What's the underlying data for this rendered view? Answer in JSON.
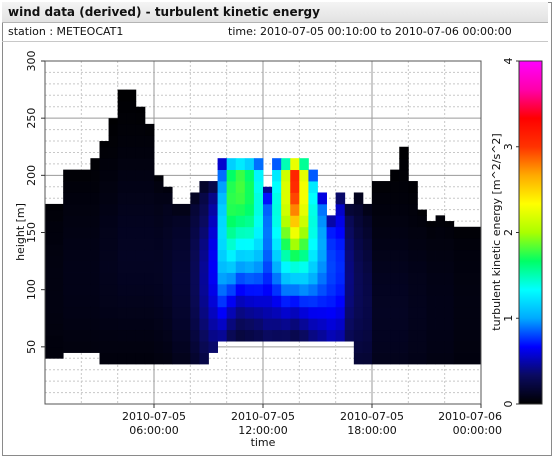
{
  "window": {
    "title": "wind data (derived) - turbulent kinetic energy",
    "station_label": "station : METEOCAT1",
    "time_label": "time: 2010-07-05 00:10:00 to 2010-07-06 00:00:00"
  },
  "chart_data": {
    "type": "heatmap",
    "title": "wind data (derived) - turbulent kinetic energy",
    "xlabel": "time",
    "ylabel": "height [m]",
    "colorbar_label": "turbulent kinetic energy [m^2/s^2]",
    "x_unit": "hours since 2010-07-05 00:00:00",
    "xlim": [
      0,
      24
    ],
    "ylim": [
      0,
      300
    ],
    "clim": [
      0,
      4
    ],
    "x_ticks": [
      {
        "x": 6,
        "date": "2010-07-05",
        "time": "06:00:00"
      },
      {
        "x": 12,
        "date": "2010-07-05",
        "time": "12:00:00"
      },
      {
        "x": 18,
        "date": "2010-07-05",
        "time": "18:00:00"
      },
      {
        "x": 24,
        "date": "2010-07-06",
        "time": "00:00:00"
      }
    ],
    "y_ticks": [
      50,
      100,
      150,
      200,
      250,
      300
    ],
    "c_ticks": [
      0,
      1,
      2,
      3,
      4
    ],
    "grid": true,
    "colormap": [
      "#000000",
      "#0a0a60",
      "#0000ff",
      "#00aaff",
      "#00ffff",
      "#00ff66",
      "#aaff00",
      "#ffff00",
      "#ffaa00",
      "#ff3300",
      "#ff0000",
      "#ff00aa",
      "#ff00ff"
    ],
    "cell_height": 10,
    "profiles": [
      {
        "t0": 0.0,
        "t1": 1.0,
        "y0": 40,
        "y1": 175,
        "peak": 0.06,
        "hpeak": 100
      },
      {
        "t0": 1.0,
        "t1": 2.5,
        "y0": 45,
        "y1": 205,
        "peak": 0.08,
        "hpeak": 110
      },
      {
        "t0": 2.5,
        "t1": 3.0,
        "y0": 45,
        "y1": 215,
        "peak": 0.08,
        "hpeak": 110
      },
      {
        "t0": 3.0,
        "t1": 3.5,
        "y0": 35,
        "y1": 230,
        "peak": 0.1,
        "hpeak": 120
      },
      {
        "t0": 3.5,
        "t1": 4.0,
        "y0": 35,
        "y1": 250,
        "peak": 0.1,
        "hpeak": 120
      },
      {
        "t0": 4.0,
        "t1": 4.5,
        "y0": 35,
        "y1": 275,
        "peak": 0.12,
        "hpeak": 130
      },
      {
        "t0": 4.5,
        "t1": 5.0,
        "y0": 35,
        "y1": 275,
        "peak": 0.12,
        "hpeak": 130
      },
      {
        "t0": 5.0,
        "t1": 5.5,
        "y0": 35,
        "y1": 260,
        "peak": 0.12,
        "hpeak": 130
      },
      {
        "t0": 5.5,
        "t1": 6.0,
        "y0": 35,
        "y1": 245,
        "peak": 0.12,
        "hpeak": 130
      },
      {
        "t0": 6.0,
        "t1": 6.5,
        "y0": 35,
        "y1": 200,
        "peak": 0.12,
        "hpeak": 120
      },
      {
        "t0": 6.5,
        "t1": 7.0,
        "y0": 35,
        "y1": 190,
        "peak": 0.14,
        "hpeak": 120
      },
      {
        "t0": 7.0,
        "t1": 8.0,
        "y0": 35,
        "y1": 175,
        "peak": 0.18,
        "hpeak": 110
      },
      {
        "t0": 8.0,
        "t1": 8.5,
        "y0": 35,
        "y1": 185,
        "peak": 0.3,
        "hpeak": 110
      },
      {
        "t0": 8.5,
        "t1": 9.0,
        "y0": 35,
        "y1": 195,
        "peak": 0.45,
        "hpeak": 110
      },
      {
        "t0": 9.0,
        "t1": 9.5,
        "y0": 45,
        "y1": 195,
        "peak": 0.65,
        "hpeak": 120
      },
      {
        "t0": 9.5,
        "t1": 10.0,
        "y0": 55,
        "y1": 215,
        "peak": 1.2,
        "hpeak": 150
      },
      {
        "t0": 10.0,
        "t1": 10.5,
        "y0": 55,
        "y1": 215,
        "peak": 1.75,
        "hpeak": 180
      },
      {
        "t0": 10.5,
        "t1": 11.0,
        "y0": 55,
        "y1": 215,
        "peak": 1.8,
        "hpeak": 190
      },
      {
        "t0": 11.0,
        "t1": 11.5,
        "y0": 55,
        "y1": 215,
        "peak": 1.7,
        "hpeak": 185
      },
      {
        "t0": 11.5,
        "t1": 12.0,
        "y0": 55,
        "y1": 215,
        "peak": 1.4,
        "hpeak": 175
      },
      {
        "t0": 12.0,
        "t1": 12.5,
        "y0": 55,
        "y1": 190,
        "peak": 0.9,
        "hpeak": 150
      },
      {
        "t0": 12.5,
        "t1": 13.0,
        "y0": 55,
        "y1": 215,
        "peak": 1.4,
        "hpeak": 170
      },
      {
        "t0": 13.0,
        "t1": 13.5,
        "y0": 55,
        "y1": 215,
        "peak": 2.2,
        "hpeak": 185
      },
      {
        "t0": 13.5,
        "t1": 14.0,
        "y0": 55,
        "y1": 215,
        "peak": 3.1,
        "hpeak": 200
      },
      {
        "t0": 14.0,
        "t1": 14.5,
        "y0": 55,
        "y1": 215,
        "peak": 2.3,
        "hpeak": 185
      },
      {
        "t0": 14.5,
        "t1": 15.0,
        "y0": 55,
        "y1": 205,
        "peak": 1.4,
        "hpeak": 160
      },
      {
        "t0": 15.0,
        "t1": 15.5,
        "y0": 55,
        "y1": 185,
        "peak": 1.0,
        "hpeak": 140
      },
      {
        "t0": 15.5,
        "t1": 16.0,
        "y0": 55,
        "y1": 165,
        "peak": 0.8,
        "hpeak": 120
      },
      {
        "t0": 16.0,
        "t1": 16.5,
        "y0": 55,
        "y1": 185,
        "peak": 0.75,
        "hpeak": 120
      },
      {
        "t0": 16.5,
        "t1": 17.0,
        "y0": 55,
        "y1": 175,
        "peak": 0.4,
        "hpeak": 110
      },
      {
        "t0": 17.0,
        "t1": 17.5,
        "y0": 35,
        "y1": 185,
        "peak": 0.3,
        "hpeak": 100
      },
      {
        "t0": 17.5,
        "t1": 18.0,
        "y0": 35,
        "y1": 175,
        "peak": 0.25,
        "hpeak": 90
      },
      {
        "t0": 18.0,
        "t1": 19.0,
        "y0": 35,
        "y1": 195,
        "peak": 0.12,
        "hpeak": 80
      },
      {
        "t0": 19.0,
        "t1": 19.5,
        "y0": 35,
        "y1": 205,
        "peak": 0.12,
        "hpeak": 80
      },
      {
        "t0": 19.5,
        "t1": 20.0,
        "y0": 35,
        "y1": 225,
        "peak": 0.12,
        "hpeak": 80
      },
      {
        "t0": 20.0,
        "t1": 20.5,
        "y0": 35,
        "y1": 195,
        "peak": 0.1,
        "hpeak": 80
      },
      {
        "t0": 20.5,
        "t1": 21.0,
        "y0": 35,
        "y1": 170,
        "peak": 0.1,
        "hpeak": 80
      },
      {
        "t0": 21.0,
        "t1": 21.5,
        "y0": 35,
        "y1": 160,
        "peak": 0.08,
        "hpeak": 80
      },
      {
        "t0": 21.5,
        "t1": 22.0,
        "y0": 35,
        "y1": 165,
        "peak": 0.08,
        "hpeak": 80
      },
      {
        "t0": 22.0,
        "t1": 22.5,
        "y0": 35,
        "y1": 160,
        "peak": 0.08,
        "hpeak": 80
      },
      {
        "t0": 22.5,
        "t1": 24.0,
        "y0": 35,
        "y1": 155,
        "peak": 0.06,
        "hpeak": 80
      }
    ]
  }
}
